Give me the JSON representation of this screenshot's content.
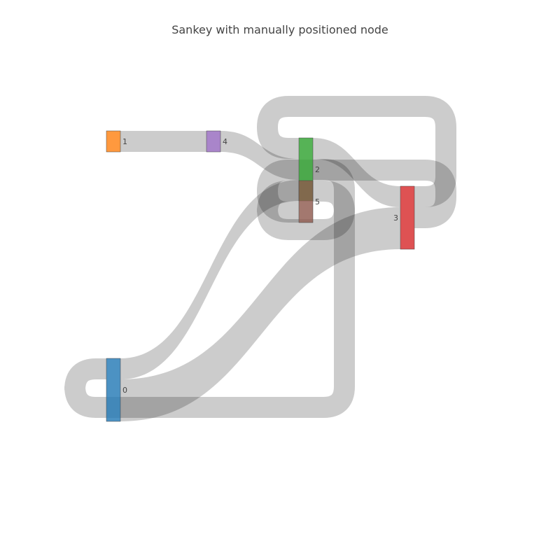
{
  "chart_data": {
    "type": "sankey",
    "title": "Sankey with manually positioned node",
    "nodes": [
      {
        "label": "0",
        "color": "#1f77b4"
      },
      {
        "label": "1",
        "color": "#ff7f0e"
      },
      {
        "label": "2",
        "color": "#2ca02c"
      },
      {
        "label": "3",
        "color": "#d62728"
      },
      {
        "label": "4",
        "color": "#9467bd"
      },
      {
        "label": "5",
        "color": "#8c564b"
      }
    ],
    "links": [
      {
        "source": 0,
        "target": 2,
        "value": 1
      },
      {
        "source": 0,
        "target": 3,
        "value": 2
      },
      {
        "source": 1,
        "target": 4,
        "value": 1
      },
      {
        "source": 4,
        "target": 2,
        "value": 1
      },
      {
        "source": 2,
        "target": 3,
        "value": 1
      },
      {
        "source": 2,
        "target": 5,
        "value": 1
      },
      {
        "source": 3,
        "target": 2,
        "value": 1
      },
      {
        "source": 3,
        "target": 5,
        "value": 1
      },
      {
        "source": 5,
        "target": 0,
        "value": 1
      }
    ],
    "link_color": "rgba(0,0,0,0.2)"
  }
}
